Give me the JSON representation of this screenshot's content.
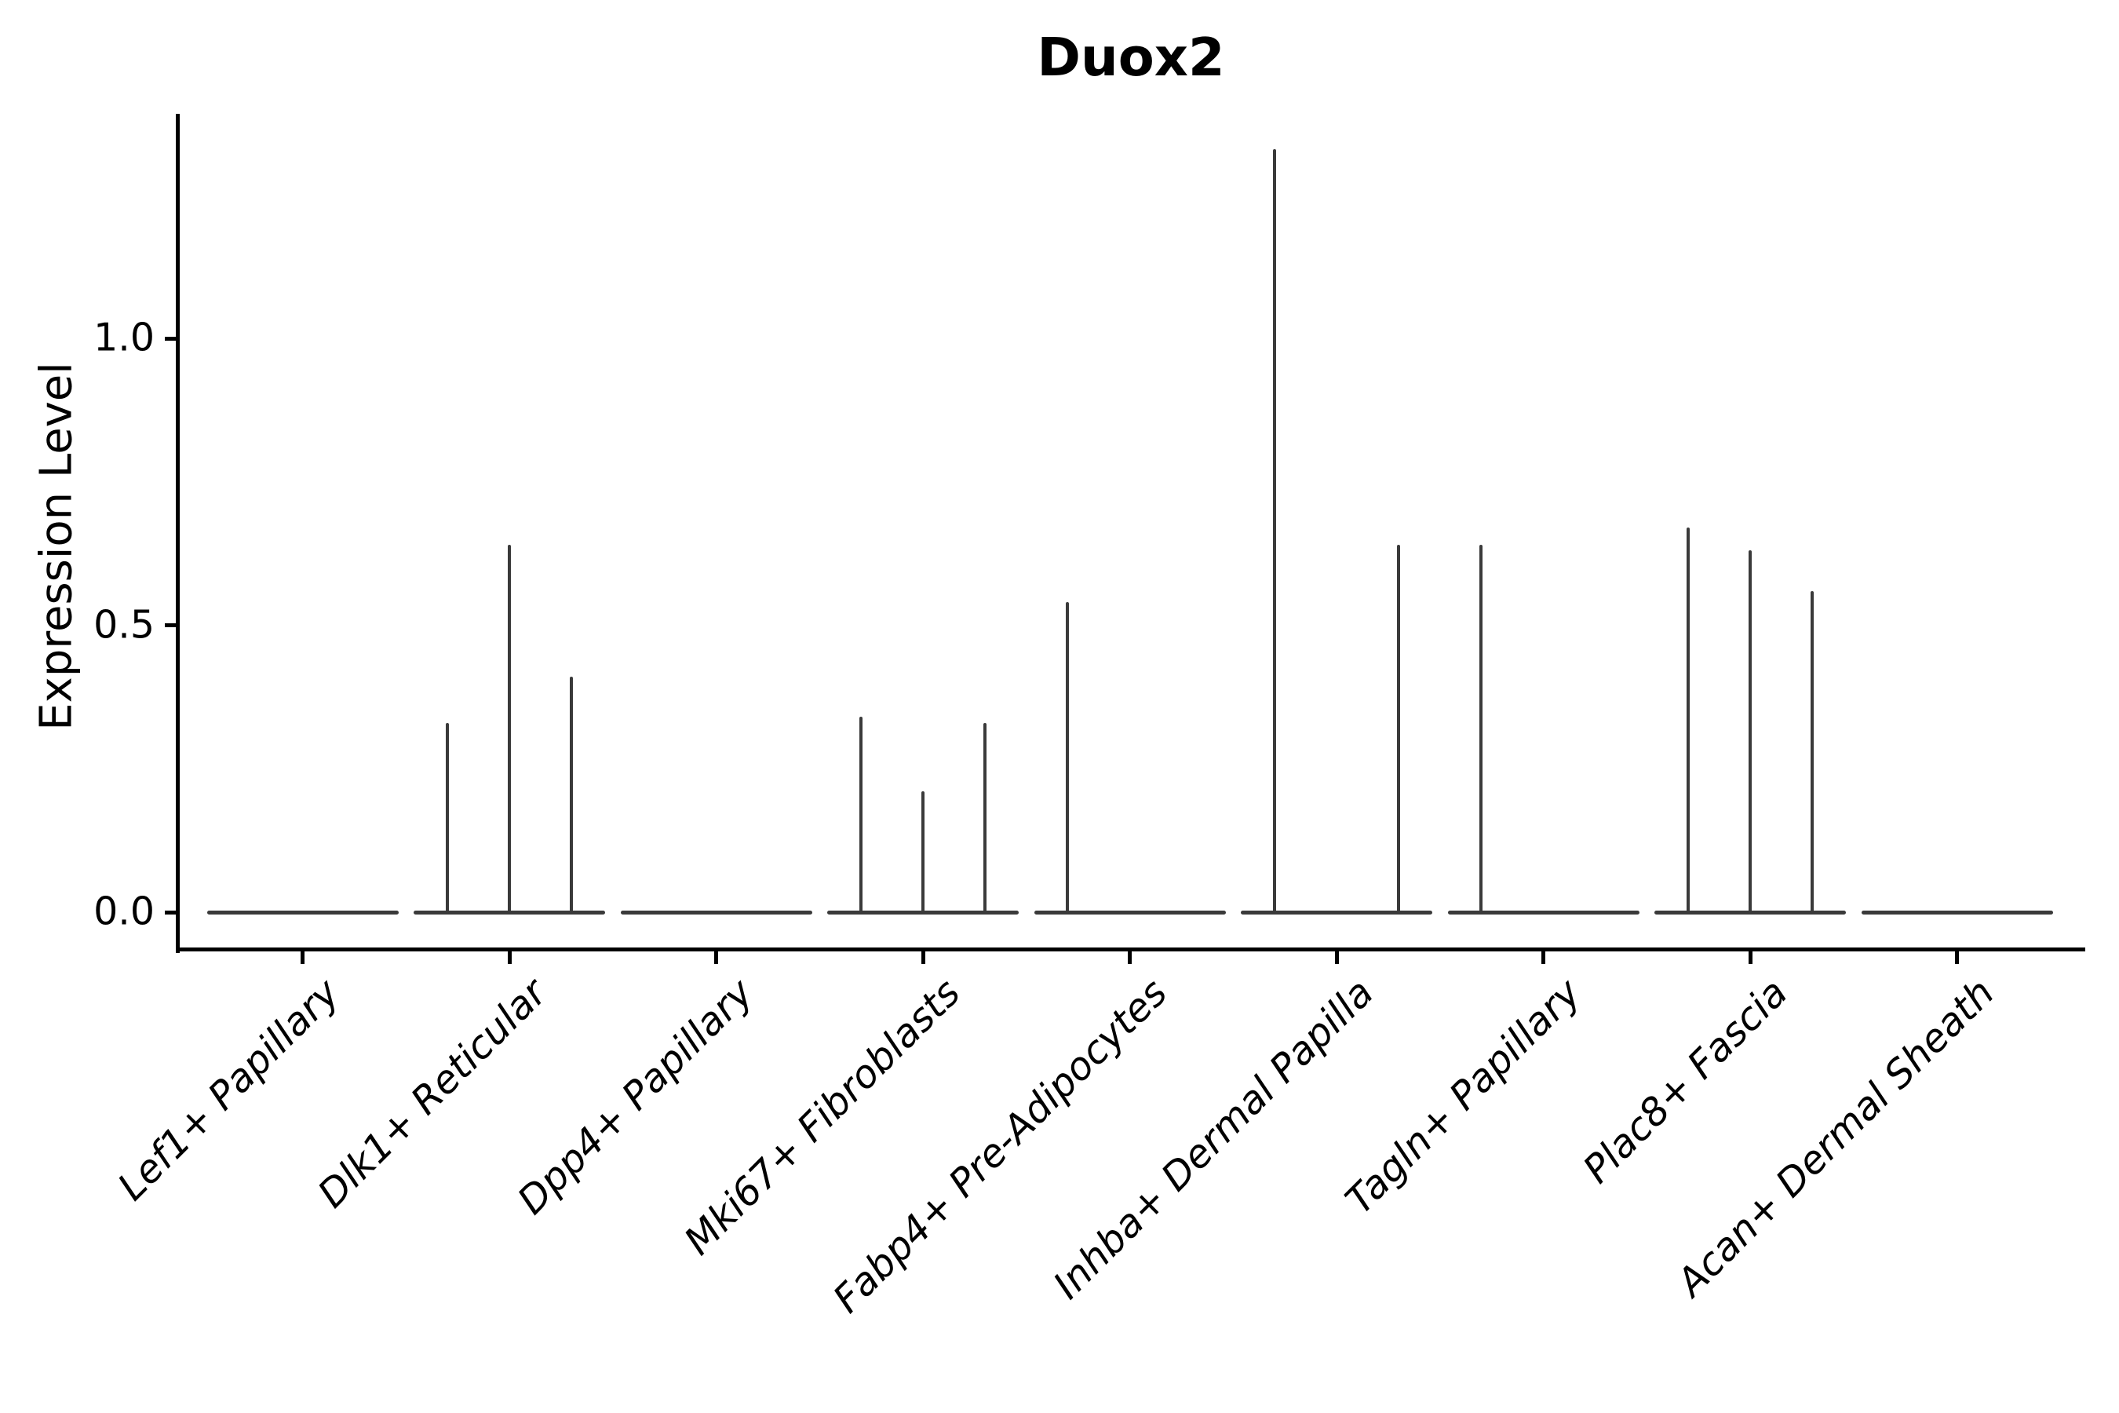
{
  "title": "Duox2",
  "axes": {
    "y": {
      "label": "Expression Level",
      "tick_labels": [
        "0.0",
        "0.5",
        "1.0"
      ],
      "tick_values": [
        0.0,
        0.5,
        1.0
      ]
    },
    "x": {
      "categories": [
        "Lef1+ Papillary",
        "Dlk1+ Reticular",
        "Dpp4+ Papillary",
        "Mki67+ Fibroblasts",
        "Fabp4+ Pre-Adipocytes",
        "Inhba+ Dermal Papilla",
        "Tagln+ Papillary",
        "Plac8+ Fascia",
        "Acan+ Dermal Sheath"
      ],
      "tick_rotation_deg": 45
    }
  },
  "colors": {
    "violin_line": "#3a3a3a",
    "spine": "#000000",
    "text": "#000000",
    "background": "#ffffff"
  },
  "chart_data": {
    "type": "violin",
    "title": "Duox2",
    "xlabel": "",
    "ylabel": "Expression Level",
    "ylim": [
      -0.06,
      1.39
    ],
    "yticks": [
      0.0,
      0.5,
      1.0
    ],
    "grid": false,
    "legend": "none",
    "categories": [
      "Lef1+ Papillary",
      "Dlk1+ Reticular",
      "Dpp4+ Papillary",
      "Mki67+ Fibroblasts",
      "Fabp4+ Pre-Adipocytes",
      "Inhba+ Dermal Papilla",
      "Tagln+ Papillary",
      "Plac8+ Fascia",
      "Acan+ Dermal Sheath"
    ],
    "violin_halfwidth": 0.46,
    "note": "All violins are collapsed to a flat horizontal line at expression 0 (most cells non-expressing); thin vertical spikes mark the upper tails reaching the expression level of rare expressing cells. Spike offsets are in category-axis units relative to each category center.",
    "series": [
      {
        "category": "Lef1+ Papillary",
        "baseline_value": 0,
        "spikes": []
      },
      {
        "category": "Dlk1+ Reticular",
        "baseline_value": 0,
        "spikes": [
          {
            "offset": -0.3,
            "value": 0.33
          },
          {
            "offset": 0.0,
            "value": 0.64
          },
          {
            "offset": 0.3,
            "value": 0.41
          }
        ]
      },
      {
        "category": "Dpp4+ Papillary",
        "baseline_value": 0,
        "spikes": []
      },
      {
        "category": "Mki67+ Fibroblasts",
        "baseline_value": 0,
        "spikes": [
          {
            "offset": -0.3,
            "value": 0.34
          },
          {
            "offset": 0.0,
            "value": 0.21
          },
          {
            "offset": 0.3,
            "value": 0.33
          }
        ]
      },
      {
        "category": "Fabp4+ Pre-Adipocytes",
        "baseline_value": 0,
        "spikes": [
          {
            "offset": -0.3,
            "value": 0.54
          }
        ]
      },
      {
        "category": "Inhba+ Dermal Papilla",
        "baseline_value": 0,
        "spikes": [
          {
            "offset": -0.3,
            "value": 1.33
          },
          {
            "offset": 0.3,
            "value": 0.64
          }
        ]
      },
      {
        "category": "Tagln+ Papillary",
        "baseline_value": 0,
        "spikes": [
          {
            "offset": -0.3,
            "value": 0.64
          }
        ]
      },
      {
        "category": "Plac8+ Fascia",
        "baseline_value": 0,
        "spikes": [
          {
            "offset": -0.3,
            "value": 0.67
          },
          {
            "offset": 0.0,
            "value": 0.63
          },
          {
            "offset": 0.3,
            "value": 0.56
          }
        ]
      },
      {
        "category": "Acan+ Dermal Sheath",
        "baseline_value": 0,
        "spikes": []
      }
    ]
  }
}
